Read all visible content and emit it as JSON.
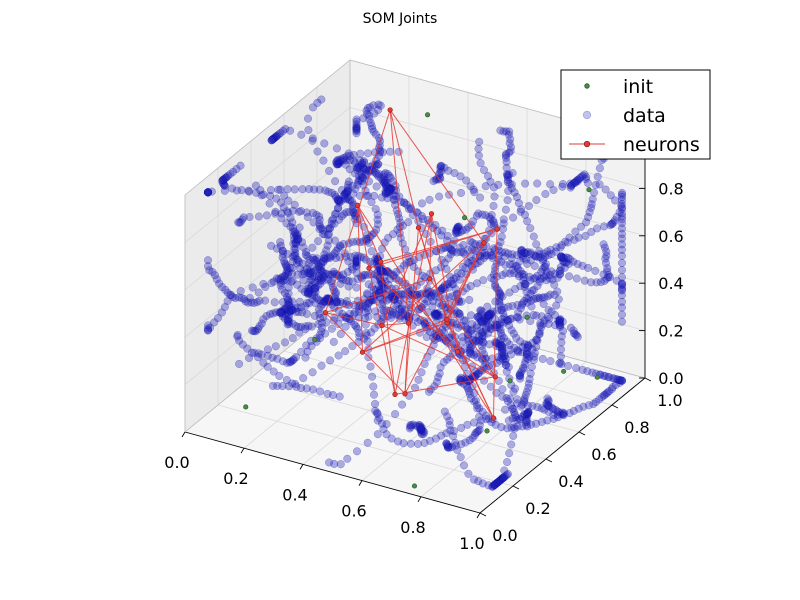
{
  "chart_data": {
    "type": "scatter",
    "projection": "3d",
    "title": "SOM Joints",
    "xlim": [
      0.0,
      1.0
    ],
    "ylim": [
      0.0,
      1.0
    ],
    "zlim": [
      0.0,
      1.0
    ],
    "xticks": [
      "0.0",
      "0.2",
      "0.4",
      "0.6",
      "0.8",
      "1.0"
    ],
    "yticks": [
      "0.0",
      "0.2",
      "0.4",
      "0.6",
      "0.8",
      "1.0"
    ],
    "zticks": [
      "0.0",
      "0.2",
      "0.4",
      "0.6",
      "0.8",
      "1.0"
    ],
    "grid": true,
    "legend_position": "top-right",
    "series": [
      {
        "name": "init",
        "color": "#2e7d32",
        "marker": "dot",
        "points": [
          [
            0.78,
            0.3,
            1.0
          ],
          [
            0.33,
            0.88,
            0.95
          ],
          [
            0.95,
            0.75,
            0.92
          ],
          [
            0.3,
            0.25,
            0.35
          ],
          [
            0.88,
            0.5,
            0.5
          ],
          [
            0.92,
            0.65,
            0.2
          ],
          [
            0.75,
            0.05,
            0.0
          ],
          [
            0.85,
            0.45,
            0.25
          ],
          [
            0.95,
            0.8,
            0.1
          ],
          [
            0.15,
            0.1,
            0.1
          ],
          [
            0.8,
            0.4,
            0.05
          ]
        ]
      },
      {
        "name": "data",
        "color": "#0000cc",
        "marker": "circle-translucent",
        "note_points_estimated": "dense clustered trajectories",
        "points_generated": true
      },
      {
        "name": "neurons",
        "color": "#e53935",
        "marker": "circle-line",
        "points": [
          [
            0.22,
            0.85,
            0.95
          ],
          [
            0.5,
            0.6,
            0.75
          ],
          [
            0.75,
            0.55,
            0.8
          ],
          [
            0.4,
            0.7,
            0.6
          ],
          [
            0.55,
            0.5,
            0.55
          ],
          [
            0.3,
            0.65,
            0.45
          ],
          [
            0.62,
            0.48,
            0.4
          ],
          [
            0.45,
            0.55,
            0.3
          ],
          [
            0.7,
            0.4,
            0.35
          ],
          [
            0.35,
            0.45,
            0.2
          ],
          [
            0.55,
            0.35,
            0.15
          ],
          [
            0.8,
            0.45,
            0.25
          ],
          [
            0.25,
            0.6,
            0.7
          ],
          [
            0.65,
            0.65,
            0.65
          ],
          [
            0.5,
            0.3,
            0.45
          ],
          [
            0.4,
            0.4,
            0.6
          ],
          [
            0.72,
            0.3,
            0.55
          ],
          [
            0.28,
            0.35,
            0.4
          ],
          [
            0.6,
            0.2,
            0.25
          ],
          [
            0.85,
            0.35,
            0.15
          ]
        ]
      }
    ]
  }
}
